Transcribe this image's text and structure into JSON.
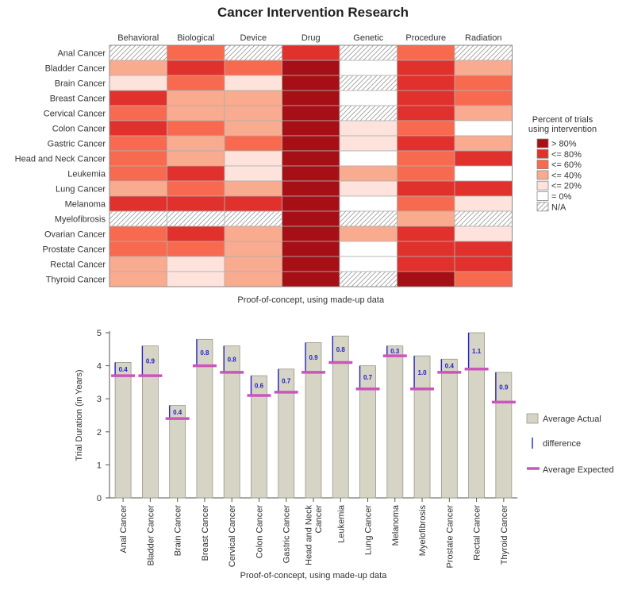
{
  "title": "Cancer Intervention Research",
  "chart_data": [
    {
      "type": "heatmap",
      "columns": [
        "Behavioral",
        "Biological",
        "Device",
        "Drug",
        "Genetic",
        "Procedure",
        "Radiation"
      ],
      "rows": [
        "Anal Cancer",
        "Bladder Cancer",
        "Brain Cancer",
        "Breast Cancer",
        "Cervical Cancer",
        "Colon Cancer",
        "Gastric Cancer",
        "Head and Neck Cancer",
        "Leukemia",
        "Lung Cancer",
        "Melanoma",
        "Myelofibrosis",
        "Ovarian Cancer",
        "Prostate Cancer",
        "Rectal Cancer",
        "Thyroid Cancer"
      ],
      "levels": [
        "N/A",
        "= 0%",
        "<= 20%",
        "<= 40%",
        "<= 60%",
        "<= 80%",
        "> 80%"
      ],
      "level_colors": [
        "#ffffff",
        "#ffffff",
        "#fde3dc",
        "#f9ab8f",
        "#f76a50",
        "#e0312d",
        "#a50f15"
      ],
      "cells": [
        [
          "N/A",
          "<= 60%",
          "N/A",
          "<= 80%",
          "N/A",
          "<= 60%",
          "N/A"
        ],
        [
          "<= 40%",
          "<= 80%",
          "<= 60%",
          "> 80%",
          "= 0%",
          "<= 80%",
          "<= 40%"
        ],
        [
          "<= 20%",
          "<= 60%",
          "<= 20%",
          "> 80%",
          "N/A",
          "<= 80%",
          "<= 60%"
        ],
        [
          "<= 80%",
          "<= 40%",
          "<= 40%",
          "> 80%",
          "= 0%",
          "<= 80%",
          "<= 60%"
        ],
        [
          "<= 60%",
          "<= 40%",
          "<= 40%",
          "> 80%",
          "N/A",
          "<= 80%",
          "<= 40%"
        ],
        [
          "<= 80%",
          "<= 60%",
          "<= 40%",
          "> 80%",
          "<= 20%",
          "<= 60%",
          "= 0%"
        ],
        [
          "<= 60%",
          "<= 40%",
          "<= 60%",
          "> 80%",
          "<= 20%",
          "<= 80%",
          "<= 40%"
        ],
        [
          "<= 60%",
          "<= 40%",
          "<= 20%",
          "> 80%",
          "= 0%",
          "<= 60%",
          "<= 80%"
        ],
        [
          "<= 60%",
          "<= 80%",
          "<= 20%",
          "> 80%",
          "<= 40%",
          "<= 60%",
          "= 0%"
        ],
        [
          "<= 40%",
          "<= 60%",
          "<= 40%",
          "> 80%",
          "<= 20%",
          "<= 80%",
          "<= 80%"
        ],
        [
          "<= 80%",
          "<= 80%",
          "<= 80%",
          "> 80%",
          "= 0%",
          "<= 60%",
          "<= 20%"
        ],
        [
          "N/A",
          "N/A",
          "N/A",
          "> 80%",
          "N/A",
          "<= 40%",
          "N/A"
        ],
        [
          "<= 60%",
          "<= 80%",
          "<= 40%",
          "> 80%",
          "<= 40%",
          "<= 80%",
          "<= 20%"
        ],
        [
          "<= 60%",
          "<= 60%",
          "<= 40%",
          "> 80%",
          "= 0%",
          "<= 80%",
          "<= 80%"
        ],
        [
          "<= 40%",
          "<= 20%",
          "<= 40%",
          "> 80%",
          "= 0%",
          "<= 80%",
          "<= 80%"
        ],
        [
          "<= 40%",
          "<= 20%",
          "<= 40%",
          "> 80%",
          "N/A",
          "> 80%",
          "<= 60%"
        ]
      ],
      "legend_title": [
        "Percent of trials",
        "using intervention"
      ],
      "legend_position": "right",
      "footnote": "Proof-of-concept, using made-up data"
    },
    {
      "type": "bar",
      "categories": [
        "Anal Cancer",
        "Bladder Cancer",
        "Brain Cancer",
        "Breast Cancer",
        "Cervical Cancer",
        "Colon Cancer",
        "Gastric Cancer",
        "Head and Neck Cancer",
        "Leukemia",
        "Lung Cancer",
        "Melanoma",
        "Myelofibrosis",
        "Prostate Cancer",
        "Rectal Cancer",
        "Thyroid Cancer"
      ],
      "series": [
        {
          "name": "Average Actual",
          "values": [
            4.1,
            4.6,
            2.8,
            4.8,
            4.6,
            3.7,
            3.9,
            4.7,
            4.9,
            4.0,
            4.6,
            4.3,
            4.2,
            5.0,
            3.8
          ],
          "color": "#d6d4c4"
        },
        {
          "name": "difference",
          "values": [
            0.4,
            0.9,
            0.4,
            0.8,
            0.8,
            0.6,
            0.7,
            0.9,
            0.8,
            0.7,
            0.3,
            1.0,
            0.4,
            1.1,
            0.9
          ],
          "color": "#2222cc"
        },
        {
          "name": "Average Expected",
          "values": [
            3.7,
            3.7,
            2.4,
            4.0,
            3.8,
            3.1,
            3.2,
            3.8,
            4.1,
            3.3,
            4.3,
            3.3,
            3.8,
            3.9,
            2.9
          ],
          "color": "#cc55bb"
        }
      ],
      "ylabel": "Trial Duration (in Years)",
      "ylim": [
        0,
        5
      ],
      "yticks": [
        0,
        1,
        2,
        3,
        4,
        5
      ],
      "legend_position": "right",
      "footnote": "Proof-of-concept, using made-up data"
    }
  ]
}
